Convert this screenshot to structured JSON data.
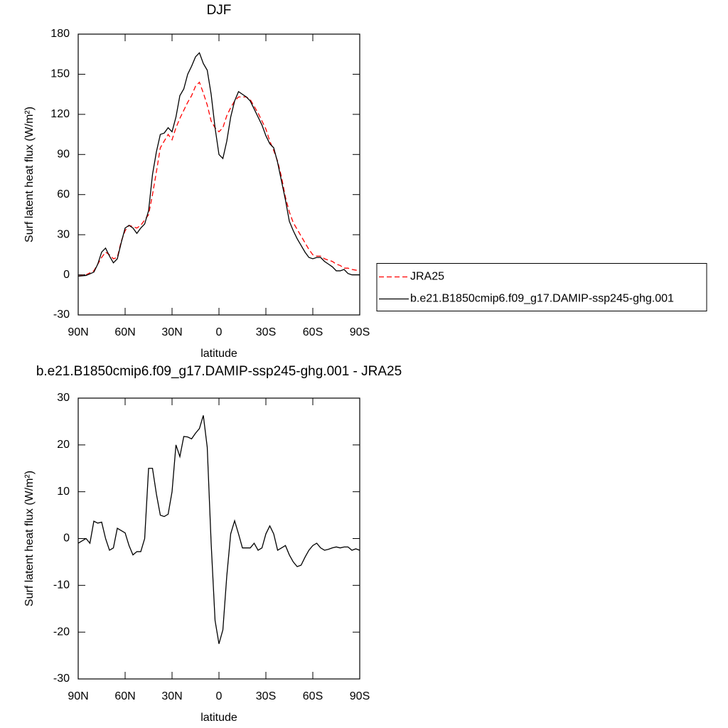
{
  "chart_data": [
    {
      "type": "line",
      "title": "DJF",
      "xlabel": "latitude",
      "ylabel": "Surf latent heat flux (W/m²)",
      "x": [
        90,
        85,
        80,
        77.5,
        75,
        72.5,
        70,
        67.5,
        65,
        62.5,
        60,
        57.5,
        55,
        52.5,
        50,
        47.5,
        45,
        42.5,
        40,
        37.5,
        35,
        32.5,
        30,
        27.5,
        25,
        22.5,
        20,
        17.5,
        15,
        12.5,
        10,
        7.5,
        5,
        2.5,
        0,
        -2.5,
        -5,
        -7.5,
        -10,
        -12.5,
        -15,
        -17.5,
        -20,
        -22.5,
        -25,
        -27.5,
        -30,
        -32.5,
        -35,
        -37.5,
        -40,
        -42.5,
        -45,
        -47.5,
        -50,
        -52.5,
        -55,
        -57.5,
        -60,
        -62.5,
        -65,
        -67.5,
        -70,
        -72.5,
        -75,
        -77.5,
        -80,
        -82.5,
        -85,
        -90
      ],
      "series": [
        {
          "name": "JRA25",
          "color": "#ff0000",
          "dashed": true,
          "values": [
            -1,
            0,
            3,
            8,
            13,
            17,
            15,
            12,
            13,
            25,
            33,
            37,
            36,
            35,
            37,
            41,
            45,
            60,
            77,
            95,
            100,
            105,
            101,
            110,
            117,
            123,
            129,
            134,
            141,
            144,
            136,
            127,
            115,
            110,
            107,
            110,
            119,
            125,
            130,
            133,
            133,
            133,
            131,
            126,
            121,
            115,
            109,
            100,
            93,
            85,
            73,
            58,
            47,
            39,
            34,
            29,
            24,
            19,
            15,
            14,
            14,
            12,
            11,
            10,
            8,
            7,
            5,
            5,
            4,
            3
          ]
        },
        {
          "name": "b.e21.B1850cmip6.f09_g17.DAMIP-ssp245-ghg.001",
          "color": "#000000",
          "dashed": false,
          "values": [
            -1,
            -0.5,
            2,
            8,
            17,
            20,
            14,
            9,
            12,
            24,
            35,
            37,
            35,
            31,
            35,
            38,
            48,
            75,
            92,
            105,
            106,
            110,
            107,
            118,
            134,
            139,
            150,
            156,
            163,
            166,
            158,
            153,
            135,
            110,
            90,
            87,
            100,
            118,
            130,
            137,
            135,
            133,
            130,
            124,
            118,
            112,
            104,
            98,
            95,
            84,
            70,
            56,
            40,
            33,
            27,
            22,
            17,
            13,
            12,
            13,
            13,
            10,
            8,
            6,
            3,
            3,
            4,
            1,
            0,
            0
          ]
        }
      ],
      "xlim": [
        90,
        -90
      ],
      "xticks": [
        {
          "value": 90,
          "label": "90N"
        },
        {
          "value": 60,
          "label": "60N"
        },
        {
          "value": 30,
          "label": "30N"
        },
        0,
        {
          "value": -30,
          "label": "30S"
        },
        {
          "value": -60,
          "label": "60S"
        },
        {
          "value": -90,
          "label": "90S"
        }
      ],
      "ylim": [
        -30,
        180
      ],
      "yticks": [
        -30,
        0,
        30,
        60,
        90,
        120,
        150,
        180
      ],
      "legend": "right"
    },
    {
      "type": "line",
      "title": "b.e21.B1850cmip6.f09_g17.DAMIP-ssp245-ghg.001 - JRA25",
      "xlabel": "latitude",
      "ylabel": "Surf latent heat flux (W/m²)",
      "x": [
        90,
        85,
        82.5,
        80,
        77.5,
        75,
        72.5,
        70,
        67.5,
        65,
        62.5,
        60,
        57.5,
        55,
        52.5,
        50,
        47.5,
        45,
        42.5,
        40,
        37.5,
        35,
        32.5,
        30,
        27.5,
        25,
        22.5,
        20,
        17.5,
        15,
        12.5,
        10,
        7.5,
        5,
        2.5,
        0,
        -2.5,
        -5,
        -7.5,
        -10,
        -12.5,
        -15,
        -17.5,
        -20,
        -22.5,
        -25,
        -27.5,
        -30,
        -32.5,
        -35,
        -37.5,
        -40,
        -42.5,
        -45,
        -47.5,
        -50,
        -52.5,
        -55,
        -57.5,
        -60,
        -62.5,
        -65,
        -67.5,
        -70,
        -72.5,
        -75,
        -77.5,
        -80,
        -82.5,
        -85,
        -87.5,
        -90
      ],
      "color": "#000000",
      "values": [
        -1,
        0,
        -1,
        3.7,
        3.3,
        3.5,
        0,
        -2.5,
        -2,
        2.2,
        1.7,
        1.2,
        -1.5,
        -3.5,
        -2.8,
        -2.8,
        0,
        15,
        15,
        9.5,
        5,
        4.7,
        5.2,
        10,
        20,
        17.5,
        21.8,
        21.7,
        21.3,
        22.5,
        23.5,
        26.3,
        19.5,
        -1,
        -17.5,
        -22.5,
        -19.5,
        -8,
        1,
        3.8,
        1,
        -2,
        -2,
        -2,
        -1,
        -2.5,
        -2,
        1,
        2.7,
        1,
        -2.5,
        -2,
        -1.5,
        -3.5,
        -5,
        -6,
        -5.7,
        -4,
        -2.5,
        -1.5,
        -1,
        -2,
        -2.5,
        -2.3,
        -2,
        -1.8,
        -2,
        -1.8,
        -1.8,
        -2.5,
        -2.2,
        -2.5
      ],
      "xlim": [
        90,
        -90
      ],
      "xticks": [
        {
          "value": 90,
          "label": "90N"
        },
        {
          "value": 60,
          "label": "60N"
        },
        {
          "value": 30,
          "label": "30N"
        },
        0,
        {
          "value": -30,
          "label": "30S"
        },
        {
          "value": -60,
          "label": "60S"
        },
        {
          "value": -90,
          "label": "90S"
        }
      ],
      "ylim": [
        -30,
        30
      ],
      "yticks": [
        -30,
        -20,
        -10,
        0,
        10,
        20,
        30
      ]
    }
  ]
}
